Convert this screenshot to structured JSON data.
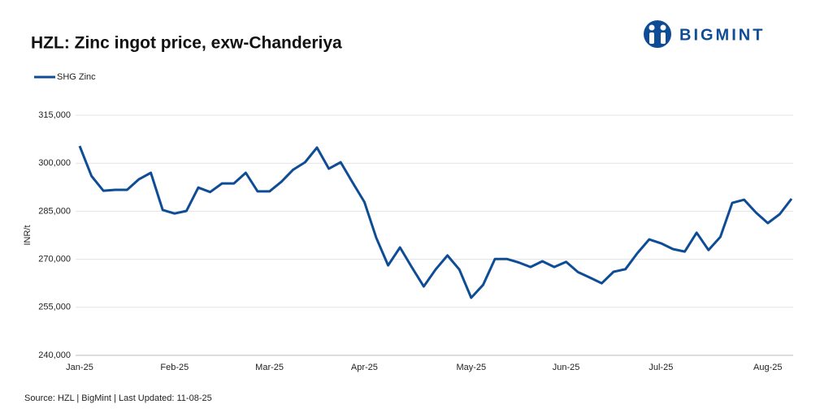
{
  "brand": "BIGMINT",
  "chart_data": {
    "type": "line",
    "title": "HZL: Zinc ingot price, exw-Chanderiya",
    "y_label": "INR/t",
    "source": "Source: HZL | BigMint | Last Updated: 11-08-25",
    "legend_position": "top-left",
    "grid": true,
    "categories": [
      "Jan-25",
      null,
      null,
      null,
      null,
      null,
      null,
      null,
      "Feb-25",
      null,
      null,
      null,
      null,
      null,
      null,
      null,
      "Mar-25",
      null,
      null,
      null,
      null,
      null,
      null,
      null,
      "Apr-25",
      null,
      null,
      null,
      null,
      null,
      null,
      null,
      null,
      "May-25",
      null,
      null,
      null,
      null,
      null,
      null,
      null,
      "Jun-25",
      null,
      null,
      null,
      null,
      null,
      null,
      null,
      "Jul-25",
      null,
      null,
      null,
      null,
      null,
      null,
      null,
      null,
      "Aug-25",
      null,
      null
    ],
    "series": [
      {
        "name": "SHG Zinc",
        "color": "#0e4c96",
        "values": [
          305400,
          296000,
          291400,
          291700,
          291700,
          295000,
          297000,
          285400,
          284300,
          285100,
          292400,
          291000,
          293700,
          293700,
          297000,
          291200,
          291200,
          294200,
          298000,
          300300,
          304900,
          298300,
          300300,
          294000,
          287900,
          276700,
          268100,
          273700,
          267500,
          261500,
          266800,
          271200,
          266800,
          258000,
          262000,
          270100,
          270100,
          269000,
          267600,
          269400,
          267600,
          269200,
          266000,
          264300,
          262500,
          266100,
          266900,
          271900,
          276200,
          275000,
          273200,
          272400,
          278300,
          272900,
          277000,
          287600,
          288600,
          284600,
          281300,
          284100,
          288900
        ]
      }
    ],
    "ylim": [
      240000,
      315000
    ],
    "yticks": [
      {
        "value": 240000,
        "label": "240,000"
      },
      {
        "value": 255000,
        "label": "255,000"
      },
      {
        "value": 270000,
        "label": "270,000"
      },
      {
        "value": 285000,
        "label": "285,000"
      },
      {
        "value": 300000,
        "label": "300,000"
      },
      {
        "value": 315000,
        "label": "315,000"
      }
    ]
  }
}
